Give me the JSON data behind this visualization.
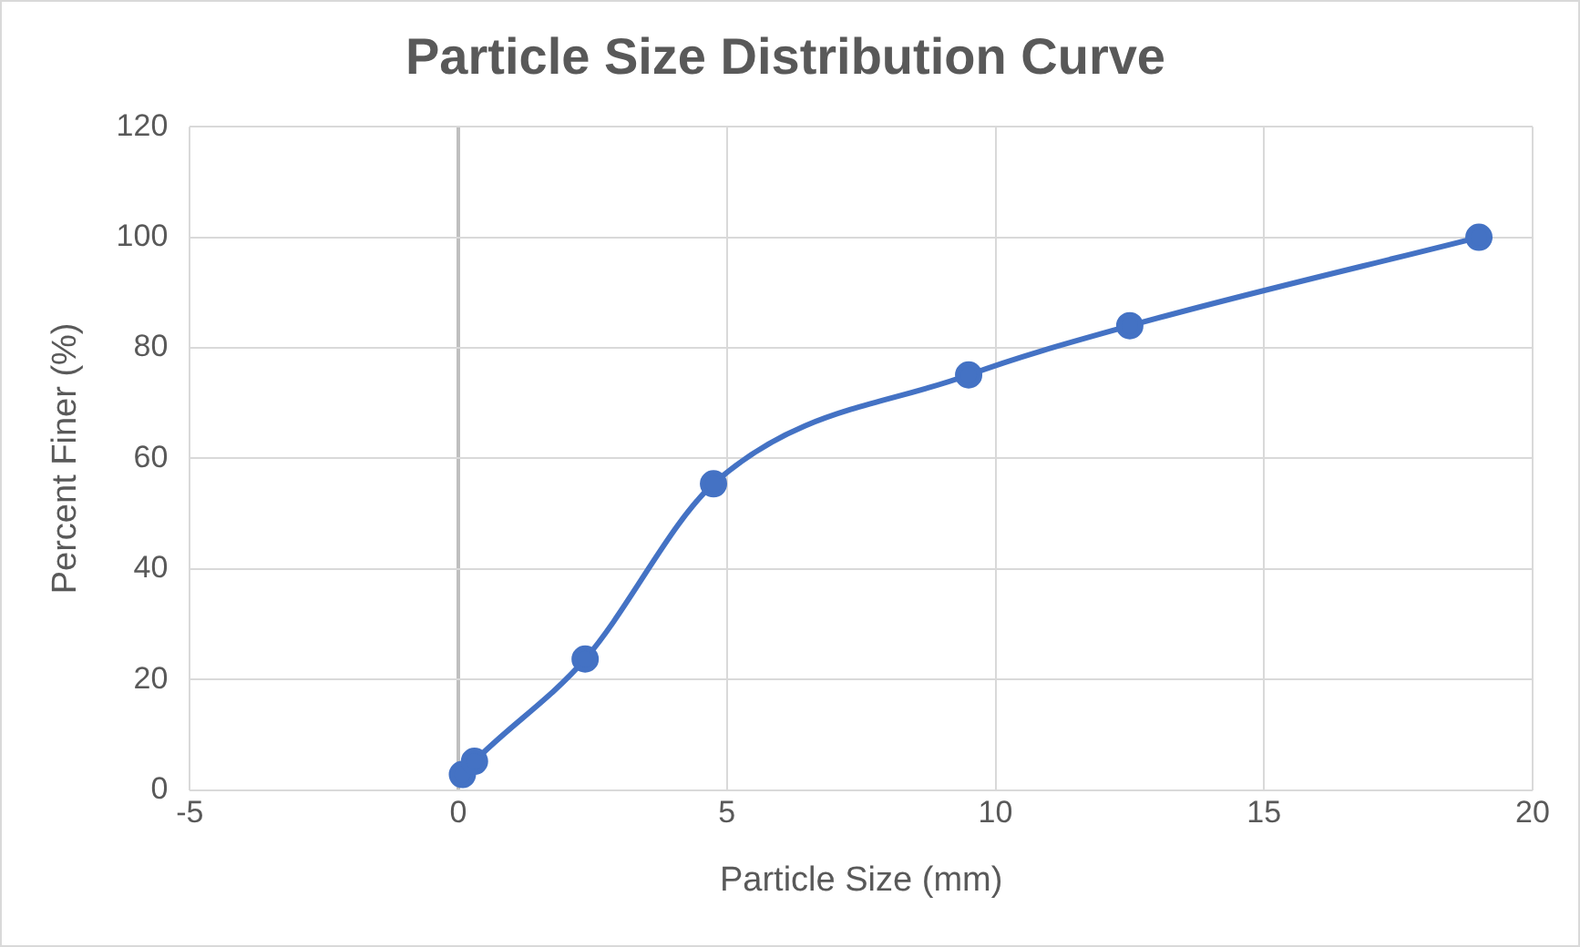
{
  "chart_data": {
    "type": "line",
    "title": "Particle Size Distribution Curve",
    "xlabel": "Particle Size (mm)",
    "ylabel": "Percent Finer (%)",
    "x": [
      0.075,
      0.3,
      2.36,
      4.75,
      9.5,
      12.5,
      19
    ],
    "series": [
      {
        "color": "#4472c4",
        "values": [
          2.8,
          5.2,
          23.7,
          55.4,
          75.1,
          84,
          100
        ]
      }
    ],
    "xlim": [
      -5,
      20
    ],
    "xticks": [
      -5,
      0,
      5,
      10,
      15,
      20
    ],
    "ylim": [
      0,
      120
    ],
    "yticks": [
      0,
      20,
      40,
      60,
      80,
      100,
      120
    ],
    "grid": true,
    "legend": false,
    "marker": "circle",
    "line_style": "solid"
  }
}
